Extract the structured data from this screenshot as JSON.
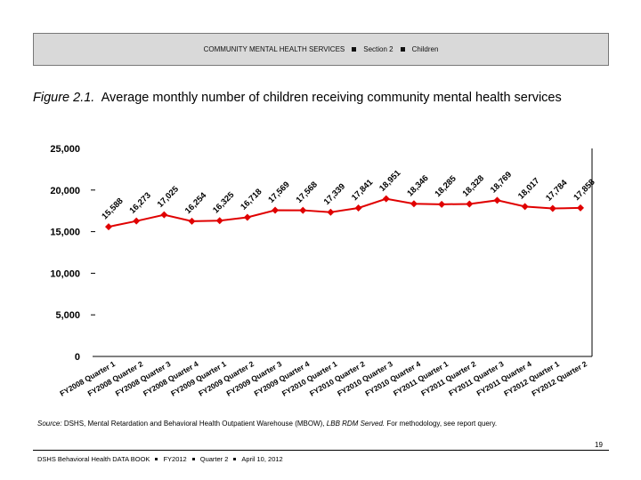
{
  "header": {
    "section_title": "COMMUNITY MENTAL HEALTH SERVICES",
    "section": "Section 2",
    "topic": "Children"
  },
  "figure": {
    "label": "Figure 2.1.",
    "caption": "Average monthly number of children receiving community mental health services"
  },
  "chart_data": {
    "type": "line",
    "categories": [
      "FY2008 Quarter 1",
      "FY2008 Quarter 2",
      "FY2008 Quarter 3",
      "FY2008 Quarter 4",
      "FY2009 Quarter 1",
      "FY2009 Quarter 2",
      "FY2009 Quarter 3",
      "FY2009 Quarter 4",
      "FY2010 Quarter 1",
      "FY2010 Quarter 2",
      "FY2010 Quarter 3",
      "FY2010 Quarter 4",
      "FY2011 Quarter 1",
      "FY2011 Quarter 2",
      "FY2011 Quarter 3",
      "FY2011 Quarter 4",
      "FY2012 Quarter 1",
      "FY2012 Quarter 2"
    ],
    "values": [
      15588,
      16273,
      17025,
      16254,
      16325,
      16718,
      17569,
      17568,
      17339,
      17841,
      18951,
      18346,
      18285,
      18328,
      18769,
      18017,
      17784,
      17858
    ],
    "data_labels": [
      "15,588",
      "16,273",
      "17,025",
      "16,254",
      "16,325",
      "16,718",
      "17,569",
      "17,568",
      "17,339",
      "17,841",
      "18,951",
      "18,346",
      "18,285",
      "18,328",
      "18,769",
      "18,017",
      "17,784",
      "17,858"
    ],
    "y_ticks": [
      "0",
      "5,000",
      "10,000",
      "15,000",
      "20,000",
      "25,000"
    ],
    "y_tick_values": [
      0,
      5000,
      10000,
      15000,
      20000,
      25000
    ],
    "ylim": [
      0,
      25000
    ],
    "series_color": "#e00000",
    "grid": false,
    "legend": "none"
  },
  "source": {
    "prefix": "Source:",
    "text": "DSHS, Mental Retardation and Behavioral Health Outpatient Warehouse (MBOW),",
    "italic": "LBB RDM Served.",
    "suffix": "For methodology, see report query."
  },
  "page_number": "19",
  "footer": {
    "book": "DSHS Behavioral Health DATA BOOK",
    "fy": "FY2012",
    "quarter": "Quarter 2",
    "date": "April 10, 2012"
  }
}
